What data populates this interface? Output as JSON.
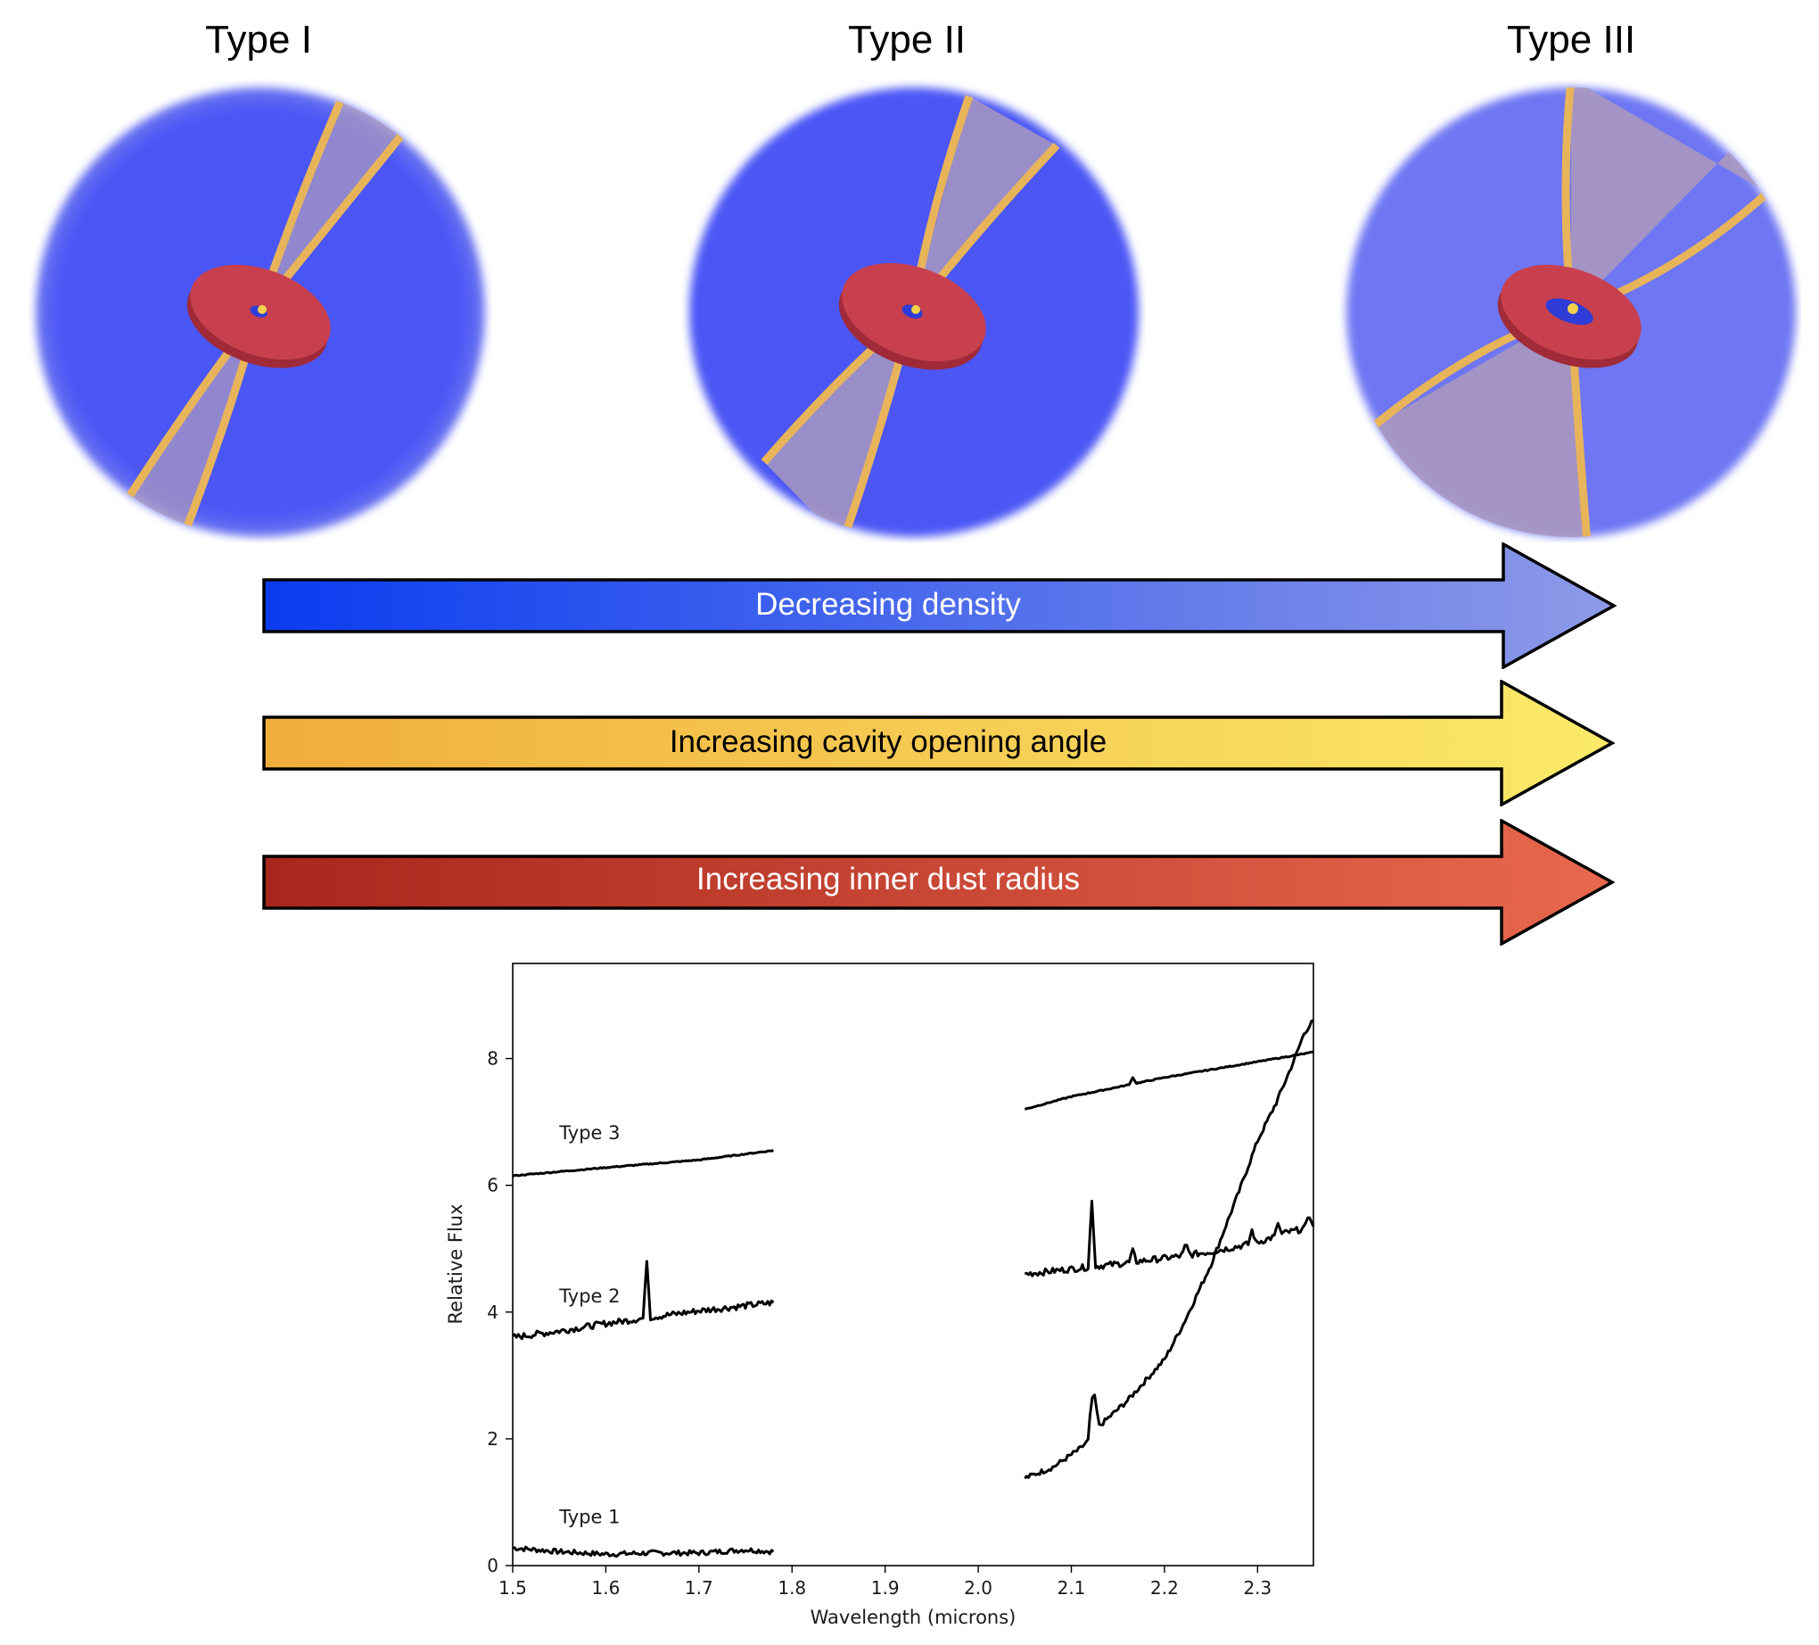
{
  "models": [
    {
      "title": "Type I"
    },
    {
      "title": "Type II"
    },
    {
      "title": "Type III"
    }
  ],
  "arrows": [
    {
      "label": "Decreasing density",
      "color_start": "#0a3cf0",
      "color_end": "#8e9ae8",
      "text_color": "#ffffff"
    },
    {
      "label": "Increasing cavity opening angle",
      "color_start": "#f0ad3c",
      "color_end": "#fbea6a",
      "text_color": "#000000"
    },
    {
      "label": "Increasing inner dust radius",
      "color_start": "#a8261c",
      "color_end": "#e8684e",
      "text_color": "#ffffff"
    }
  ],
  "colors": {
    "envelope": "#4b57f5",
    "disk": "#c8404e",
    "cavity_wall": "#e8b45a",
    "cavity_fill": "#a898c0"
  },
  "chart_data": {
    "type": "line",
    "xlabel": "Wavelength (microns)",
    "ylabel": "Relative Flux",
    "xlim": [
      1.5,
      2.36
    ],
    "ylim": [
      0,
      9.5
    ],
    "xticks": [
      1.5,
      1.6,
      1.7,
      1.8,
      1.9,
      2.0,
      2.1,
      2.2,
      2.3
    ],
    "yticks": [
      0,
      2,
      4,
      6,
      8
    ],
    "series": [
      {
        "name": "Type 1",
        "segments": [
          {
            "x": [
              1.5,
              1.55,
              1.6,
              1.65,
              1.7,
              1.75,
              1.78
            ],
            "y": [
              0.28,
              0.22,
              0.18,
              0.2,
              0.2,
              0.25,
              0.22
            ]
          },
          {
            "x": [
              2.05,
              2.08,
              2.11,
              2.12,
              2.125,
              2.13,
              2.16,
              2.2,
              2.22,
              2.25,
              2.28,
              2.3,
              2.32,
              2.34,
              2.35,
              2.36
            ],
            "y": [
              1.38,
              1.55,
              1.85,
              2.0,
              2.65,
              2.2,
              2.6,
              3.25,
              3.8,
              4.75,
              5.9,
              6.7,
              7.3,
              8.0,
              8.4,
              8.6
            ]
          }
        ],
        "peaks": [
          {
            "x": 2.122,
            "y": 2.7
          },
          {
            "x": 2.325,
            "y": 7.3
          }
        ]
      },
      {
        "name": "Type 2",
        "segments": [
          {
            "x": [
              1.5,
              1.55,
              1.6,
              1.64,
              1.65,
              1.7,
              1.75,
              1.78
            ],
            "y": [
              3.6,
              3.7,
              3.82,
              3.9,
              3.92,
              4.02,
              4.1,
              4.15
            ]
          },
          {
            "x": [
              2.05,
              2.1,
              2.15,
              2.2,
              2.25,
              2.3,
              2.33,
              2.36
            ],
            "y": [
              4.6,
              4.68,
              4.76,
              4.85,
              4.95,
              5.1,
              5.25,
              5.35
            ]
          }
        ],
        "peaks": [
          {
            "x": 1.644,
            "y": 4.8
          },
          {
            "x": 2.122,
            "y": 5.75
          },
          {
            "x": 2.166,
            "y": 5.0
          },
          {
            "x": 2.223,
            "y": 5.1
          },
          {
            "x": 2.294,
            "y": 5.3
          },
          {
            "x": 2.322,
            "y": 5.4
          },
          {
            "x": 2.355,
            "y": 5.55
          }
        ]
      },
      {
        "name": "Type 3",
        "segments": [
          {
            "x": [
              1.5,
              1.6,
              1.7,
              1.78
            ],
            "y": [
              6.15,
              6.28,
              6.4,
              6.55
            ]
          },
          {
            "x": [
              2.05,
              2.1,
              2.2,
              2.3,
              2.36
            ],
            "y": [
              7.2,
              7.4,
              7.7,
              7.95,
              8.1
            ]
          }
        ],
        "peaks": [
          {
            "x": 2.166,
            "y": 7.7
          }
        ]
      }
    ]
  }
}
